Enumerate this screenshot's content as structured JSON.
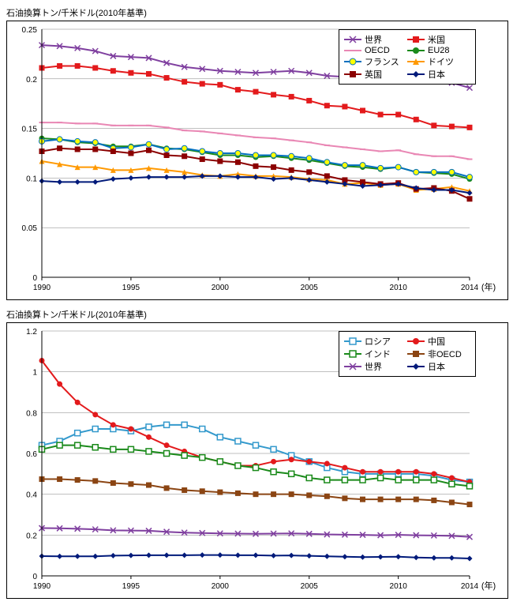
{
  "chart1": {
    "type": "line",
    "y_title": "石油換算トン/千米ドル(2010年基準)",
    "x_unit": "(年)",
    "xlim": [
      1990,
      2014
    ],
    "ylim": [
      0,
      0.25
    ],
    "xticks": [
      1990,
      1995,
      2000,
      2005,
      2010,
      2014
    ],
    "yticks": [
      0,
      0.05,
      0.1,
      0.15,
      0.2,
      0.25
    ],
    "years": [
      1990,
      1991,
      1992,
      1993,
      1994,
      1995,
      1996,
      1997,
      1998,
      1999,
      2000,
      2001,
      2002,
      2003,
      2004,
      2005,
      2006,
      2007,
      2008,
      2009,
      2010,
      2011,
      2012,
      2013,
      2014
    ],
    "grid_color": "#808080",
    "background_color": "#ffffff",
    "legend_cols": 2,
    "series": [
      {
        "label": "世界",
        "color": "#7f3f9f",
        "marker": "x",
        "values": [
          0.234,
          0.233,
          0.231,
          0.228,
          0.223,
          0.222,
          0.221,
          0.216,
          0.212,
          0.21,
          0.208,
          0.207,
          0.206,
          0.207,
          0.208,
          0.206,
          0.203,
          0.202,
          0.201,
          0.199,
          0.201,
          0.199,
          0.198,
          0.196,
          0.191
        ]
      },
      {
        "label": "米国",
        "color": "#e31a1c",
        "marker": "square-filled",
        "values": [
          0.211,
          0.213,
          0.213,
          0.211,
          0.208,
          0.206,
          0.205,
          0.201,
          0.197,
          0.195,
          0.194,
          0.189,
          0.187,
          0.184,
          0.182,
          0.178,
          0.173,
          0.172,
          0.168,
          0.164,
          0.164,
          0.159,
          0.153,
          0.152,
          0.151
        ]
      },
      {
        "label": "OECD",
        "color": "#e987b4",
        "marker": "dash",
        "values": [
          0.156,
          0.156,
          0.155,
          0.155,
          0.153,
          0.153,
          0.153,
          0.151,
          0.148,
          0.147,
          0.145,
          0.143,
          0.141,
          0.14,
          0.138,
          0.136,
          0.133,
          0.131,
          0.129,
          0.127,
          0.128,
          0.124,
          0.122,
          0.122,
          0.119
        ]
      },
      {
        "label": "EU28",
        "color": "#1a8a1a",
        "marker": "circle-filled",
        "values": [
          0.14,
          0.139,
          0.136,
          0.135,
          0.132,
          0.132,
          0.134,
          0.13,
          0.129,
          0.126,
          0.123,
          0.123,
          0.121,
          0.122,
          0.12,
          0.118,
          0.115,
          0.112,
          0.111,
          0.109,
          0.111,
          0.106,
          0.105,
          0.104,
          0.099
        ]
      },
      {
        "label": "フランス",
        "color": "#0070c0",
        "marker": "circle-yellow",
        "values": [
          0.137,
          0.139,
          0.137,
          0.136,
          0.13,
          0.131,
          0.134,
          0.129,
          0.13,
          0.127,
          0.125,
          0.125,
          0.123,
          0.123,
          0.122,
          0.12,
          0.116,
          0.113,
          0.113,
          0.11,
          0.111,
          0.106,
          0.106,
          0.106,
          0.101
        ]
      },
      {
        "label": "ドイツ",
        "color": "#ff9900",
        "marker": "triangle",
        "values": [
          0.117,
          0.114,
          0.111,
          0.111,
          0.108,
          0.108,
          0.11,
          0.108,
          0.106,
          0.103,
          0.102,
          0.104,
          0.102,
          0.102,
          0.101,
          0.099,
          0.098,
          0.094,
          0.095,
          0.093,
          0.094,
          0.088,
          0.089,
          0.091,
          0.087
        ]
      },
      {
        "label": "英国",
        "color": "#8b0000",
        "marker": "square-dark",
        "values": [
          0.127,
          0.13,
          0.129,
          0.129,
          0.127,
          0.125,
          0.128,
          0.123,
          0.122,
          0.119,
          0.117,
          0.116,
          0.112,
          0.111,
          0.108,
          0.106,
          0.102,
          0.098,
          0.096,
          0.094,
          0.095,
          0.089,
          0.09,
          0.087,
          0.079
        ]
      },
      {
        "label": "日本",
        "color": "#001a7a",
        "marker": "diamond",
        "values": [
          0.097,
          0.096,
          0.096,
          0.096,
          0.099,
          0.1,
          0.101,
          0.101,
          0.101,
          0.102,
          0.102,
          0.101,
          0.101,
          0.099,
          0.1,
          0.098,
          0.096,
          0.094,
          0.092,
          0.093,
          0.094,
          0.09,
          0.088,
          0.088,
          0.085
        ]
      }
    ]
  },
  "chart2": {
    "type": "line",
    "y_title": "石油換算トン/千米ドル(2010年基準)",
    "x_unit": "(年)",
    "xlim": [
      1990,
      2014
    ],
    "ylim": [
      0,
      1.2
    ],
    "xticks": [
      1990,
      1995,
      2000,
      2005,
      2010,
      2014
    ],
    "yticks": [
      0,
      0.2,
      0.4,
      0.6,
      0.8,
      1.0,
      1.2
    ],
    "years": [
      1990,
      1991,
      1992,
      1993,
      1994,
      1995,
      1996,
      1997,
      1998,
      1999,
      2000,
      2001,
      2002,
      2003,
      2004,
      2005,
      2006,
      2007,
      2008,
      2009,
      2010,
      2011,
      2012,
      2013,
      2014
    ],
    "grid_color": "#808080",
    "background_color": "#ffffff",
    "legend_cols": 2,
    "series": [
      {
        "label": "ロシア",
        "color": "#3399cc",
        "marker": "square-open",
        "values": [
          0.64,
          0.66,
          0.7,
          0.72,
          0.72,
          0.71,
          0.73,
          0.74,
          0.74,
          0.72,
          0.68,
          0.66,
          0.64,
          0.62,
          0.59,
          0.56,
          0.53,
          0.51,
          0.5,
          0.5,
          0.5,
          0.5,
          0.49,
          0.47,
          0.46
        ]
      },
      {
        "label": "中国",
        "color": "#e31a1c",
        "marker": "circle-filled",
        "values": [
          1.055,
          0.94,
          0.85,
          0.79,
          0.74,
          0.72,
          0.68,
          0.64,
          0.61,
          0.58,
          0.56,
          0.54,
          0.54,
          0.56,
          0.57,
          0.56,
          0.55,
          0.53,
          0.51,
          0.51,
          0.51,
          0.51,
          0.5,
          0.48,
          0.46
        ]
      },
      {
        "label": "インド",
        "color": "#1a8a1a",
        "marker": "square-open-green",
        "values": [
          0.62,
          0.64,
          0.64,
          0.63,
          0.62,
          0.62,
          0.61,
          0.6,
          0.59,
          0.58,
          0.56,
          0.54,
          0.53,
          0.51,
          0.5,
          0.48,
          0.47,
          0.47,
          0.47,
          0.48,
          0.47,
          0.47,
          0.47,
          0.45,
          0.44
        ]
      },
      {
        "label": "非OECD",
        "color": "#8b4513",
        "marker": "square-brown",
        "values": [
          0.474,
          0.474,
          0.47,
          0.465,
          0.455,
          0.45,
          0.445,
          0.43,
          0.42,
          0.415,
          0.41,
          0.405,
          0.4,
          0.4,
          0.4,
          0.395,
          0.39,
          0.38,
          0.375,
          0.375,
          0.375,
          0.375,
          0.37,
          0.36,
          0.35
        ]
      },
      {
        "label": "世界",
        "color": "#7f3f9f",
        "marker": "x",
        "values": [
          0.234,
          0.233,
          0.231,
          0.228,
          0.223,
          0.222,
          0.221,
          0.216,
          0.212,
          0.21,
          0.208,
          0.207,
          0.206,
          0.207,
          0.208,
          0.206,
          0.203,
          0.202,
          0.201,
          0.199,
          0.201,
          0.199,
          0.198,
          0.196,
          0.191
        ]
      },
      {
        "label": "日本",
        "color": "#001a7a",
        "marker": "diamond",
        "values": [
          0.097,
          0.096,
          0.096,
          0.096,
          0.099,
          0.1,
          0.101,
          0.101,
          0.101,
          0.102,
          0.102,
          0.101,
          0.101,
          0.099,
          0.1,
          0.098,
          0.096,
          0.094,
          0.092,
          0.093,
          0.094,
          0.09,
          0.088,
          0.088,
          0.085
        ]
      }
    ]
  }
}
